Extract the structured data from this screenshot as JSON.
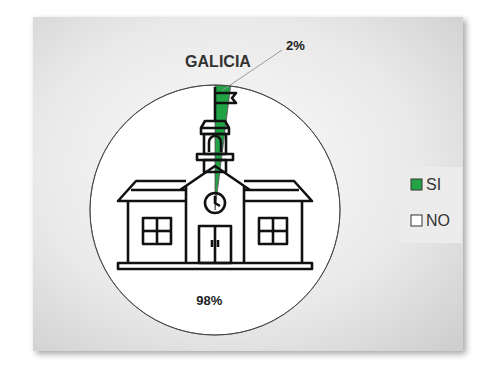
{
  "chart_data": {
    "type": "pie",
    "title": "GALICIA",
    "categories": [
      "SI",
      "NO"
    ],
    "values": [
      2,
      98
    ],
    "value_labels": [
      "2%",
      "98%"
    ],
    "colors": [
      "#22a446",
      "#ffffff"
    ],
    "legend": "right",
    "data_labels": true
  }
}
